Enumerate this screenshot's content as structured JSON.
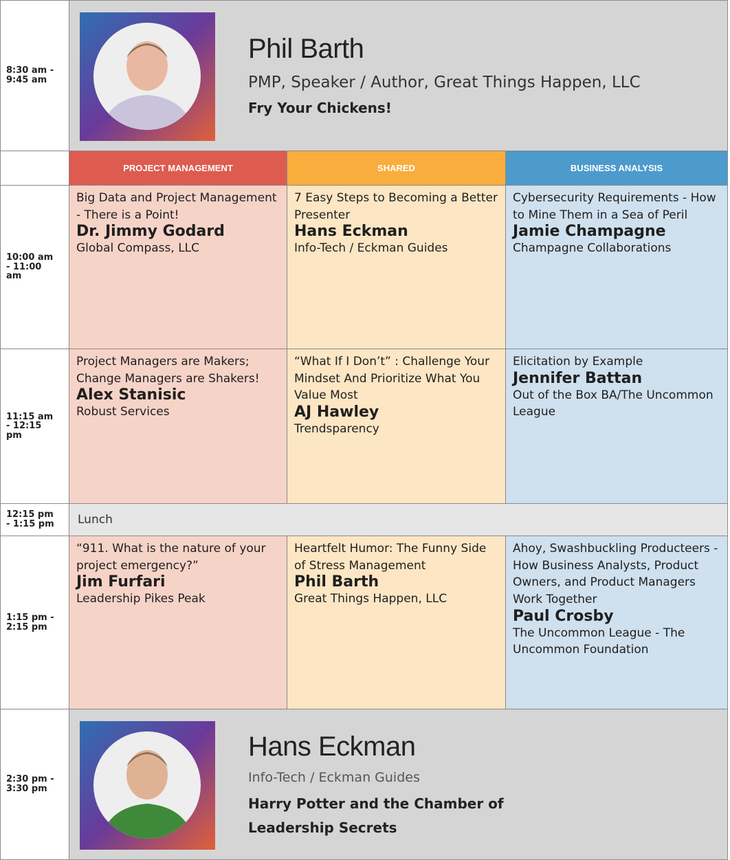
{
  "keynotes": [
    {
      "time": "8:30 am - 9:45 am",
      "speaker": "Phil Barth",
      "affiliation": "PMP, Speaker / Author, Great Things Happen, LLC",
      "title": "Fry Your Chickens!"
    },
    {
      "time": "2:30 pm - 3:30 pm",
      "speaker": "Hans Eckman",
      "affiliation": "Info-Tech / Eckman Guides",
      "title": "Harry Potter and the Chamber of Leadership Secrets"
    }
  ],
  "tracks": [
    "PROJECT MANAGEMENT",
    "SHARED",
    "BUSINESS ANALYSIS"
  ],
  "sessions": [
    {
      "time": "10:00 am - 11:00 am",
      "cells": [
        {
          "title": "Big Data and Project Management - There is a Point!",
          "speaker": "Dr. Jimmy Godard",
          "org": "Global Compass, LLC"
        },
        {
          "title": "7 Easy Steps to Becoming a Better Presenter",
          "speaker": "Hans Eckman",
          "org": "Info-Tech / Eckman Guides"
        },
        {
          "title": "Cybersecurity Requirements - How to Mine Them in a Sea of Peril",
          "speaker": "Jamie Champagne",
          "org": "Champagne Collaborations"
        }
      ]
    },
    {
      "time": "11:15 am - 12:15 pm",
      "cells": [
        {
          "title": "Project Managers are Makers; Change Managers are Shakers!",
          "speaker": "Alex Stanisic",
          "org": "Robust Services"
        },
        {
          "title": "“What If I Don’t” : Challenge Your Mindset And Prioritize What You Value Most",
          "speaker": "AJ Hawley",
          "org": "Trendsparency"
        },
        {
          "title": "Elicitation by Example",
          "speaker": "Jennifer Battan",
          "org": "Out of the Box BA/The Uncommon League"
        }
      ]
    },
    {
      "time": "1:15 pm - 2:15 pm",
      "cells": [
        {
          "title": "“911. What is the nature of your project emergency?”",
          "speaker": "Jim Furfari",
          "org": "Leadership Pikes Peak"
        },
        {
          "title": "Heartfelt Humor: The Funny Side of Stress Management",
          "speaker": "Phil Barth",
          "org": "Great Things Happen, LLC"
        },
        {
          "title": "Ahoy, Swashbuckling Producteers - How Business Analysts, Product Owners, and Product Managers Work Together",
          "speaker": "Paul Crosby",
          "org": "The Uncommon League - The Uncommon Foundation"
        }
      ]
    }
  ],
  "lunch": {
    "time": "12:15 pm - 1:15 pm",
    "label": "Lunch"
  }
}
